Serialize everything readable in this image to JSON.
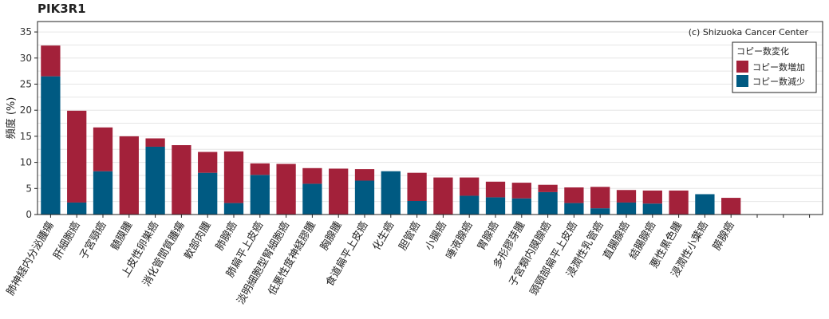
{
  "chart_data": {
    "type": "bar",
    "stacked": true,
    "title": "PIK3R1",
    "ylabel": "頻度 (%)",
    "xlabel": "",
    "ylim": [
      0,
      37
    ],
    "yticks": [
      0,
      5,
      10,
      15,
      20,
      25,
      30,
      35
    ],
    "grid": true,
    "credit": "(c) Shizuoka Cancer Center",
    "legend": {
      "title": "コピー数変化",
      "position": "top-right",
      "entries": [
        {
          "label": "コピー数増加",
          "color": "#a3213a"
        },
        {
          "label": "コピー数減少",
          "color": "#005a82"
        }
      ]
    },
    "categories": [
      "肺神経内分泌腫瘍",
      "肝細胞癌",
      "子宮頸癌",
      "髄膜腫",
      "上皮性卵巣癌",
      "消化管間質腫瘍",
      "軟部肉腫",
      "肺腺癌",
      "肺扁平上皮癌",
      "淡明細胞型腎細胞癌",
      "低悪性度神経膠腫",
      "胸腺腫",
      "食道扁平上皮癌",
      "化生癌",
      "胆管癌",
      "小腸癌",
      "唾液腺癌",
      "胃腺癌",
      "多形膠芽腫",
      "子宮類内膜腺癌",
      "頭頸部扁平上皮癌",
      "浸潤性乳管癌",
      "直腸腺癌",
      "結腸腺癌",
      "悪性黒色腫",
      "浸潤性小葉癌",
      "膵腺癌",
      "",
      "",
      ""
    ],
    "series": [
      {
        "name": "コピー数減少",
        "color": "#005a82",
        "values": [
          26.5,
          2.3,
          8.3,
          0,
          13.0,
          0,
          8.0,
          2.2,
          7.6,
          0,
          5.9,
          0,
          6.5,
          8.3,
          2.6,
          0,
          3.6,
          3.3,
          3.1,
          4.3,
          2.2,
          1.2,
          2.3,
          2.1,
          0,
          3.9,
          0,
          0,
          0,
          0
        ]
      },
      {
        "name": "コピー数増加",
        "color": "#a3213a",
        "values": [
          5.9,
          17.6,
          8.4,
          15.0,
          1.6,
          13.3,
          4.0,
          9.9,
          2.2,
          9.7,
          3.0,
          8.8,
          2.2,
          0,
          5.4,
          7.1,
          3.5,
          3.0,
          3.0,
          1.4,
          3.0,
          4.1,
          2.4,
          2.5,
          4.6,
          0,
          3.2,
          0,
          0,
          0
        ]
      }
    ]
  }
}
